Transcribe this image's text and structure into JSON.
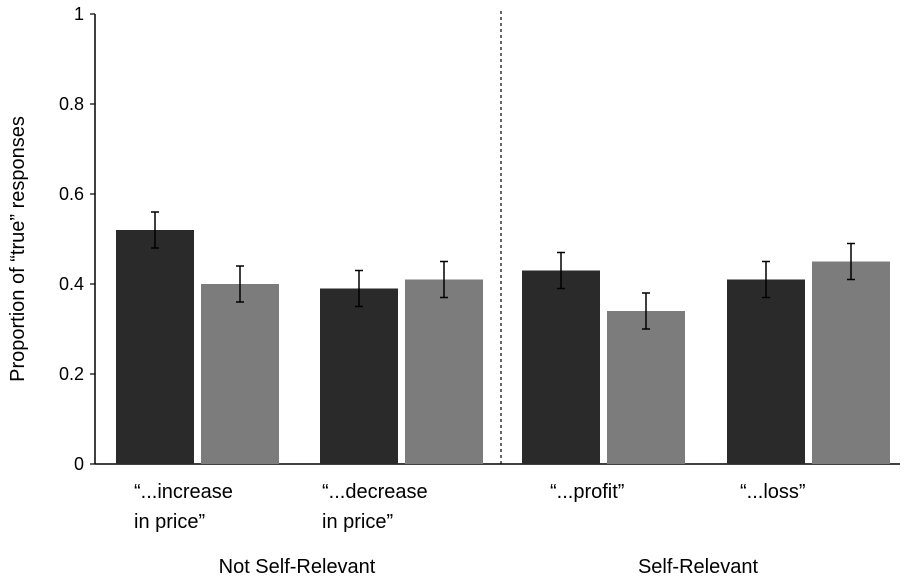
{
  "chart_data": {
    "type": "bar",
    "title": "",
    "xlabel": "",
    "ylabel": "Proportion of “true” responses",
    "ylim": [
      0,
      1
    ],
    "yticks": [
      "0",
      "0.2",
      "0.4",
      "0.6",
      "0.8",
      "1"
    ],
    "categories": [
      {
        "line1": "“...increase",
        "line2": "in price”"
      },
      {
        "line1": "“...decrease",
        "line2": "in price”"
      },
      {
        "line1": "“...profit”",
        "line2": ""
      },
      {
        "line1": "“...loss”",
        "line2": ""
      }
    ],
    "groups": [
      {
        "label": "Not Self-Relevant",
        "categories": [
          0,
          1
        ]
      },
      {
        "label": "Self-Relevant",
        "categories": [
          2,
          3
        ]
      }
    ],
    "series": [
      {
        "name": "dark",
        "color": "#2a2a2a",
        "values": [
          0.52,
          0.39,
          0.43,
          0.41
        ],
        "errors": [
          0.04,
          0.04,
          0.04,
          0.04
        ]
      },
      {
        "name": "light",
        "color": "#7c7c7c",
        "values": [
          0.4,
          0.41,
          0.34,
          0.45
        ],
        "errors": [
          0.04,
          0.04,
          0.04,
          0.04
        ]
      }
    ],
    "divider": "between-groups",
    "grid": false
  }
}
